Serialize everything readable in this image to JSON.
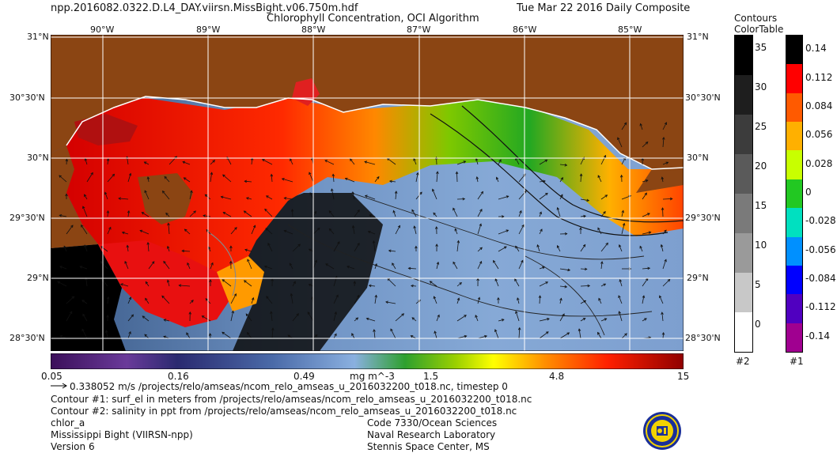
{
  "header": {
    "filename": "npp.2016082.0322.D.L4_DAY.viirsn.MissBight.v06.750m.hdf",
    "date": "Tue Mar 22 2016 Daily Composite",
    "title": "Chlorophyll Concentration, OCI Algorithm"
  },
  "map": {
    "lon_labels": [
      "90°W",
      "89°W",
      "88°W",
      "87°W",
      "86°W",
      "85°W"
    ],
    "lat_labels_left": [
      "31°N",
      "30°30'N",
      "30°N",
      "29°30'N",
      "29°N",
      "28°30'N"
    ],
    "lat_labels_right": [
      "31°N",
      "30°30'N",
      "30°N",
      "29°30'N",
      "29°N",
      "28°30'N"
    ],
    "colors": {
      "land": "#8B4513",
      "coast": "#ffffff",
      "nodata": "#000000",
      "grid": "#ffffff"
    }
  },
  "main_colorbar": {
    "ticks": [
      "0.05",
      "0.16",
      "0.49",
      "1.5",
      "4.8",
      "15"
    ],
    "unit": "mg m^-3"
  },
  "contours_colortable": {
    "title_line1": "Contours",
    "title_line2": "ColorTable",
    "labels": [
      "35",
      "30",
      "25",
      "20",
      "15",
      "10",
      "5",
      "0"
    ],
    "footer": "#2"
  },
  "colortable_1": {
    "labels": [
      "0.14",
      "0.112",
      "0.084",
      "0.056",
      "0.028",
      "0",
      "-0.028",
      "-0.056",
      "-0.084",
      "-0.112",
      "-0.14"
    ],
    "footer": "#1"
  },
  "footer": {
    "vector_line": "0.338052 m/s /projects/relo/amseas/ncom_relo_amseas_u_2016032200_t018.nc, timestep 0",
    "contour1": "Contour #1: surf_el in meters from /projects/relo/amseas/ncom_relo_amseas_u_2016032200_t018.nc",
    "contour2": "Contour #2: salinity in ppt from /projects/relo/amseas/ncom_relo_amseas_u_2016032200_t018.nc",
    "product": "chlor_a",
    "region": "Mississippi Bight (VIIRSN-npp)",
    "version": "Version 6",
    "org1": "Code 7330/Ocean Sciences",
    "org2": "Naval Research Laboratory",
    "org3": "Stennis Space Center, MS"
  }
}
